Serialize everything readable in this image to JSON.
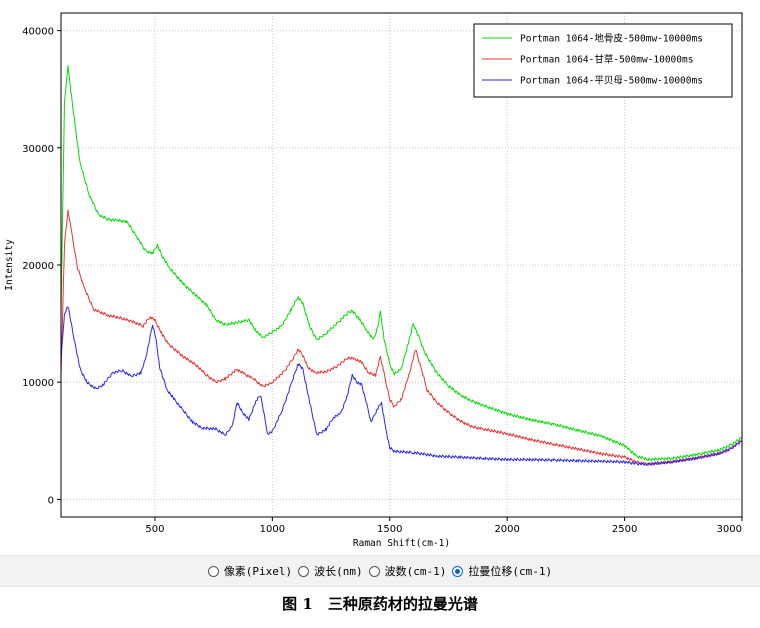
{
  "chart_data": {
    "type": "line",
    "xlabel": "Raman Shift(cm-1)",
    "ylabel": "Intensity",
    "xlim": [
      100,
      3000
    ],
    "ylim": [
      -1500,
      41500
    ],
    "x_ticks": [
      500,
      1000,
      1500,
      2000,
      2500,
      3000
    ],
    "y_ticks": [
      0,
      10000,
      20000,
      30000,
      40000
    ],
    "grid": true,
    "legend_position": "top-right",
    "series": [
      {
        "name": "Portman 1064-地骨皮-500mw-10000ms",
        "color": "#00e000",
        "points": [
          [
            100,
            16000
          ],
          [
            115,
            34000
          ],
          [
            130,
            36900
          ],
          [
            150,
            33500
          ],
          [
            180,
            28800
          ],
          [
            220,
            26000
          ],
          [
            260,
            24300
          ],
          [
            300,
            23900
          ],
          [
            340,
            23800
          ],
          [
            380,
            23700
          ],
          [
            420,
            22500
          ],
          [
            460,
            21200
          ],
          [
            490,
            21000
          ],
          [
            510,
            21700
          ],
          [
            530,
            20800
          ],
          [
            560,
            19800
          ],
          [
            620,
            18400
          ],
          [
            680,
            17300
          ],
          [
            720,
            16600
          ],
          [
            760,
            15300
          ],
          [
            800,
            14900
          ],
          [
            850,
            15100
          ],
          [
            900,
            15300
          ],
          [
            930,
            14400
          ],
          [
            960,
            13800
          ],
          [
            1000,
            14300
          ],
          [
            1040,
            14800
          ],
          [
            1080,
            16200
          ],
          [
            1110,
            17300
          ],
          [
            1130,
            16700
          ],
          [
            1160,
            14700
          ],
          [
            1190,
            13600
          ],
          [
            1230,
            14200
          ],
          [
            1280,
            15100
          ],
          [
            1320,
            15900
          ],
          [
            1340,
            16100
          ],
          [
            1370,
            15400
          ],
          [
            1400,
            14500
          ],
          [
            1430,
            13600
          ],
          [
            1450,
            14800
          ],
          [
            1460,
            16000
          ],
          [
            1475,
            13800
          ],
          [
            1500,
            11500
          ],
          [
            1520,
            10700
          ],
          [
            1550,
            11200
          ],
          [
            1580,
            13400
          ],
          [
            1600,
            15000
          ],
          [
            1625,
            13800
          ],
          [
            1650,
            12500
          ],
          [
            1700,
            10800
          ],
          [
            1750,
            9700
          ],
          [
            1800,
            8900
          ],
          [
            1850,
            8400
          ],
          [
            1900,
            8000
          ],
          [
            2000,
            7300
          ],
          [
            2100,
            6800
          ],
          [
            2200,
            6400
          ],
          [
            2300,
            5900
          ],
          [
            2400,
            5400
          ],
          [
            2500,
            4600
          ],
          [
            2550,
            3700
          ],
          [
            2600,
            3400
          ],
          [
            2700,
            3500
          ],
          [
            2800,
            3800
          ],
          [
            2900,
            4200
          ],
          [
            2950,
            4600
          ],
          [
            3000,
            5300
          ]
        ]
      },
      {
        "name": "Portman 1064-甘草-500mw-10000ms",
        "color": "#f03030",
        "points": [
          [
            100,
            10500
          ],
          [
            115,
            21800
          ],
          [
            130,
            24700
          ],
          [
            145,
            22800
          ],
          [
            170,
            19800
          ],
          [
            200,
            18000
          ],
          [
            240,
            16200
          ],
          [
            300,
            15700
          ],
          [
            350,
            15500
          ],
          [
            400,
            15200
          ],
          [
            450,
            14800
          ],
          [
            480,
            15600
          ],
          [
            500,
            15300
          ],
          [
            530,
            14100
          ],
          [
            560,
            13200
          ],
          [
            620,
            12200
          ],
          [
            680,
            11400
          ],
          [
            720,
            10600
          ],
          [
            760,
            10000
          ],
          [
            800,
            10300
          ],
          [
            850,
            11100
          ],
          [
            880,
            10700
          ],
          [
            920,
            10300
          ],
          [
            960,
            9600
          ],
          [
            1000,
            10000
          ],
          [
            1050,
            10900
          ],
          [
            1090,
            12100
          ],
          [
            1110,
            12800
          ],
          [
            1130,
            12300
          ],
          [
            1150,
            11300
          ],
          [
            1180,
            10800
          ],
          [
            1230,
            10900
          ],
          [
            1280,
            11400
          ],
          [
            1320,
            12100
          ],
          [
            1350,
            12000
          ],
          [
            1380,
            11700
          ],
          [
            1410,
            10800
          ],
          [
            1440,
            10600
          ],
          [
            1460,
            12200
          ],
          [
            1475,
            10800
          ],
          [
            1500,
            8500
          ],
          [
            1520,
            7900
          ],
          [
            1550,
            8600
          ],
          [
            1580,
            10500
          ],
          [
            1610,
            12800
          ],
          [
            1635,
            11100
          ],
          [
            1660,
            9300
          ],
          [
            1700,
            8300
          ],
          [
            1750,
            7400
          ],
          [
            1800,
            6700
          ],
          [
            1850,
            6200
          ],
          [
            1900,
            6000
          ],
          [
            2000,
            5600
          ],
          [
            2100,
            5100
          ],
          [
            2200,
            4700
          ],
          [
            2300,
            4300
          ],
          [
            2400,
            3900
          ],
          [
            2500,
            3600
          ],
          [
            2550,
            3200
          ],
          [
            2600,
            3000
          ],
          [
            2700,
            3200
          ],
          [
            2800,
            3500
          ],
          [
            2900,
            3900
          ],
          [
            2950,
            4300
          ],
          [
            3000,
            5100
          ]
        ]
      },
      {
        "name": "Portman 1064-平贝母-500mw-10000ms",
        "color": "#2828f0",
        "points": [
          [
            100,
            12000
          ],
          [
            115,
            15800
          ],
          [
            130,
            16500
          ],
          [
            150,
            14300
          ],
          [
            180,
            11200
          ],
          [
            210,
            10000
          ],
          [
            250,
            9400
          ],
          [
            280,
            9800
          ],
          [
            320,
            10800
          ],
          [
            360,
            11000
          ],
          [
            400,
            10500
          ],
          [
            440,
            10800
          ],
          [
            460,
            12000
          ],
          [
            480,
            13900
          ],
          [
            490,
            14900
          ],
          [
            505,
            13600
          ],
          [
            520,
            11300
          ],
          [
            550,
            9400
          ],
          [
            580,
            8600
          ],
          [
            620,
            7600
          ],
          [
            660,
            6600
          ],
          [
            700,
            6100
          ],
          [
            760,
            6000
          ],
          [
            800,
            5500
          ],
          [
            830,
            6300
          ],
          [
            850,
            8300
          ],
          [
            870,
            7500
          ],
          [
            900,
            6800
          ],
          [
            930,
            8400
          ],
          [
            950,
            8900
          ],
          [
            980,
            5600
          ],
          [
            1000,
            5800
          ],
          [
            1040,
            7500
          ],
          [
            1080,
            9800
          ],
          [
            1110,
            11600
          ],
          [
            1130,
            11100
          ],
          [
            1160,
            8200
          ],
          [
            1190,
            5500
          ],
          [
            1230,
            6000
          ],
          [
            1260,
            7000
          ],
          [
            1290,
            7300
          ],
          [
            1320,
            8900
          ],
          [
            1340,
            10600
          ],
          [
            1360,
            10000
          ],
          [
            1380,
            9800
          ],
          [
            1400,
            8300
          ],
          [
            1420,
            6600
          ],
          [
            1450,
            7800
          ],
          [
            1465,
            8300
          ],
          [
            1480,
            6300
          ],
          [
            1500,
            4400
          ],
          [
            1520,
            4100
          ],
          [
            1600,
            4000
          ],
          [
            1700,
            3700
          ],
          [
            1800,
            3600
          ],
          [
            1900,
            3500
          ],
          [
            2000,
            3400
          ],
          [
            2100,
            3400
          ],
          [
            2200,
            3350
          ],
          [
            2300,
            3300
          ],
          [
            2400,
            3250
          ],
          [
            2500,
            3200
          ],
          [
            2550,
            3050
          ],
          [
            2600,
            3000
          ],
          [
            2700,
            3200
          ],
          [
            2800,
            3500
          ],
          [
            2900,
            3900
          ],
          [
            2950,
            4300
          ],
          [
            3000,
            5000
          ]
        ]
      }
    ]
  },
  "unit_selector": {
    "options": [
      {
        "label": "像素(Pixel)",
        "checked": false
      },
      {
        "label": "波长(nm)",
        "checked": false
      },
      {
        "label": "波数(cm-1)",
        "checked": false
      },
      {
        "label": "拉曼位移(cm-1)",
        "checked": true
      }
    ]
  },
  "caption": "图 1　三种原药材的拉曼光谱"
}
